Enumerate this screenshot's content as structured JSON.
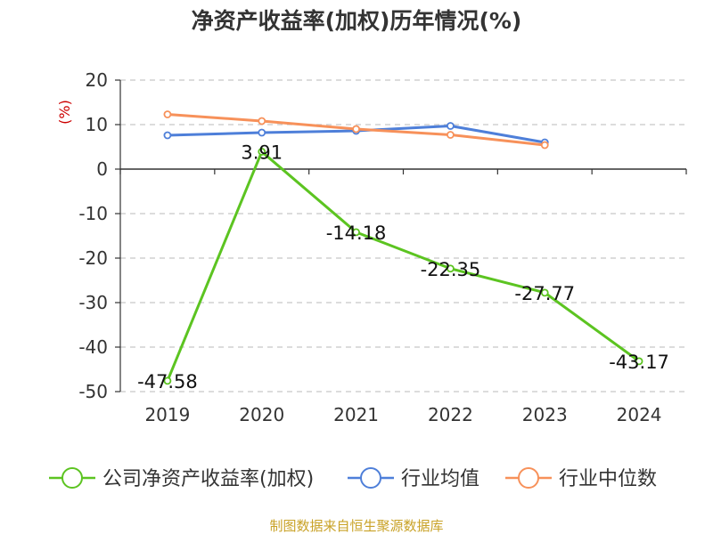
{
  "chart_data": {
    "type": "line",
    "title": "净资产收益率(加权)历年情况(%)",
    "ylabel": "(%)",
    "categories": [
      "2019",
      "2020",
      "2021",
      "2022",
      "2023",
      "2024"
    ],
    "ylim": [
      -50,
      20
    ],
    "yticks": [
      20,
      10,
      0,
      -10,
      -20,
      -30,
      -40,
      -50
    ],
    "grid": true,
    "legend_position": "bottom",
    "series": [
      {
        "name": "公司净资产收益率(加权)",
        "color": "#5cc421",
        "values": [
          -47.58,
          3.91,
          -14.18,
          -22.35,
          -27.77,
          -43.17
        ],
        "labels": [
          "-47.58",
          "3.91",
          "-14.18",
          "-22.35",
          "-27.77",
          "-43.17"
        ]
      },
      {
        "name": "行业均值",
        "color": "#4e7fd9",
        "values": [
          7.6,
          8.2,
          8.6,
          9.7,
          6.0,
          null
        ]
      },
      {
        "name": "行业中位数",
        "color": "#f7915a",
        "values": [
          12.3,
          10.8,
          9.0,
          7.7,
          5.4,
          null
        ]
      }
    ]
  },
  "source": "制图数据来自恒生聚源数据库"
}
